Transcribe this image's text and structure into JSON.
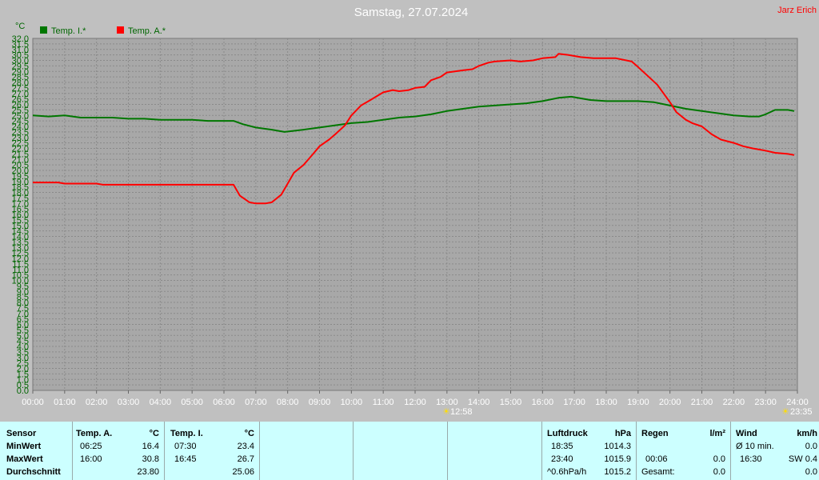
{
  "header": {
    "title": "Samstag, 27.07.2024",
    "author": "Jarz Erich"
  },
  "chart_data": {
    "type": "line",
    "unit_label": "°C",
    "ylim": [
      0,
      32
    ],
    "ystep": 0.5,
    "xlim_hours": [
      0,
      24
    ],
    "x_tick_labels": [
      "00:00",
      "01:00",
      "02:00",
      "03:00",
      "04:00",
      "05:00",
      "06:00",
      "07:00",
      "08:00",
      "09:00",
      "10:00",
      "11:00",
      "12:00",
      "13:00",
      "14:00",
      "15:00",
      "16:00",
      "17:00",
      "18:00",
      "19:00",
      "20:00",
      "21:00",
      "22:00",
      "23:00",
      "24:00"
    ],
    "grid": true,
    "legend_position": "top-left",
    "sunrise": "12:58",
    "sunset": "23:35",
    "series": [
      {
        "name": "Temp. I.*",
        "color": "#007700",
        "points": [
          [
            0,
            25.0
          ],
          [
            0.5,
            24.9
          ],
          [
            1.0,
            25.0
          ],
          [
            1.5,
            24.8
          ],
          [
            2.0,
            24.8
          ],
          [
            2.5,
            24.8
          ],
          [
            3.0,
            24.7
          ],
          [
            3.5,
            24.7
          ],
          [
            4.0,
            24.6
          ],
          [
            4.5,
            24.6
          ],
          [
            5.0,
            24.6
          ],
          [
            5.5,
            24.5
          ],
          [
            6.0,
            24.5
          ],
          [
            6.3,
            24.5
          ],
          [
            6.6,
            24.2
          ],
          [
            7.0,
            23.9
          ],
          [
            7.5,
            23.7
          ],
          [
            7.9,
            23.5
          ],
          [
            8.5,
            23.7
          ],
          [
            9.0,
            23.9
          ],
          [
            9.5,
            24.1
          ],
          [
            10.0,
            24.3
          ],
          [
            10.5,
            24.4
          ],
          [
            11.0,
            24.6
          ],
          [
            11.5,
            24.8
          ],
          [
            12.0,
            24.9
          ],
          [
            12.5,
            25.1
          ],
          [
            13.0,
            25.4
          ],
          [
            13.5,
            25.6
          ],
          [
            14.0,
            25.8
          ],
          [
            14.5,
            25.9
          ],
          [
            15.0,
            26.0
          ],
          [
            15.5,
            26.1
          ],
          [
            16.0,
            26.3
          ],
          [
            16.5,
            26.6
          ],
          [
            16.9,
            26.7
          ],
          [
            17.5,
            26.4
          ],
          [
            18.0,
            26.3
          ],
          [
            18.5,
            26.3
          ],
          [
            19.0,
            26.3
          ],
          [
            19.5,
            26.2
          ],
          [
            20.0,
            25.9
          ],
          [
            20.5,
            25.6
          ],
          [
            21.0,
            25.4
          ],
          [
            21.5,
            25.2
          ],
          [
            22.0,
            25.0
          ],
          [
            22.5,
            24.9
          ],
          [
            22.8,
            24.9
          ],
          [
            23.0,
            25.1
          ],
          [
            23.3,
            25.5
          ],
          [
            23.7,
            25.5
          ],
          [
            23.9,
            25.4
          ]
        ]
      },
      {
        "name": "Temp. A.*",
        "color": "#ff0000",
        "points": [
          [
            0,
            18.9
          ],
          [
            0.8,
            18.9
          ],
          [
            1.0,
            18.8
          ],
          [
            2.0,
            18.8
          ],
          [
            2.2,
            18.7
          ],
          [
            4.0,
            18.7
          ],
          [
            6.0,
            18.7
          ],
          [
            6.3,
            18.7
          ],
          [
            6.5,
            17.7
          ],
          [
            6.8,
            17.1
          ],
          [
            7.0,
            17.0
          ],
          [
            7.3,
            17.0
          ],
          [
            7.5,
            17.1
          ],
          [
            7.8,
            17.8
          ],
          [
            8.0,
            18.8
          ],
          [
            8.2,
            19.8
          ],
          [
            8.5,
            20.5
          ],
          [
            8.8,
            21.5
          ],
          [
            9.0,
            22.2
          ],
          [
            9.3,
            22.8
          ],
          [
            9.5,
            23.3
          ],
          [
            9.8,
            24.1
          ],
          [
            10.0,
            25.0
          ],
          [
            10.3,
            25.9
          ],
          [
            10.6,
            26.4
          ],
          [
            11.0,
            27.1
          ],
          [
            11.3,
            27.3
          ],
          [
            11.5,
            27.2
          ],
          [
            11.8,
            27.3
          ],
          [
            12.0,
            27.5
          ],
          [
            12.3,
            27.6
          ],
          [
            12.5,
            28.2
          ],
          [
            12.8,
            28.5
          ],
          [
            13.0,
            28.9
          ],
          [
            13.5,
            29.1
          ],
          [
            13.8,
            29.2
          ],
          [
            14.0,
            29.5
          ],
          [
            14.3,
            29.8
          ],
          [
            14.5,
            29.9
          ],
          [
            15.0,
            30.0
          ],
          [
            15.3,
            29.9
          ],
          [
            15.7,
            30.0
          ],
          [
            16.0,
            30.2
          ],
          [
            16.4,
            30.3
          ],
          [
            16.5,
            30.6
          ],
          [
            16.8,
            30.5
          ],
          [
            17.2,
            30.3
          ],
          [
            17.6,
            30.2
          ],
          [
            18.0,
            30.2
          ],
          [
            18.3,
            30.2
          ],
          [
            18.8,
            29.9
          ],
          [
            19.0,
            29.4
          ],
          [
            19.3,
            28.6
          ],
          [
            19.6,
            27.8
          ],
          [
            19.8,
            27.0
          ],
          [
            20.0,
            26.2
          ],
          [
            20.2,
            25.3
          ],
          [
            20.5,
            24.6
          ],
          [
            20.7,
            24.3
          ],
          [
            21.0,
            24.0
          ],
          [
            21.3,
            23.3
          ],
          [
            21.6,
            22.8
          ],
          [
            22.0,
            22.5
          ],
          [
            22.3,
            22.2
          ],
          [
            22.6,
            22.0
          ],
          [
            23.0,
            21.8
          ],
          [
            23.3,
            21.6
          ],
          [
            23.7,
            21.5
          ],
          [
            23.9,
            21.4
          ]
        ]
      }
    ]
  },
  "stats": {
    "sensor": {
      "header": "Sensor",
      "min": "MinWert",
      "max": "MaxWert",
      "avg": "Durchschnitt"
    },
    "temp_a": {
      "header": "Temp. A.",
      "unit": "°C",
      "min_time": "06:25",
      "min_val": "16.4",
      "max_time": "16:00",
      "max_val": "30.8",
      "avg": "23.80"
    },
    "temp_i": {
      "header": "Temp. I.",
      "unit": "°C",
      "min_time": "07:30",
      "min_val": "23.4",
      "max_time": "16:45",
      "max_val": "26.7",
      "avg": "25.06"
    },
    "pressure": {
      "header": "Luftdruck",
      "unit": "hPa",
      "min_time": "18:35",
      "min_val": "1014.3",
      "max_time": "23:40",
      "max_val": "1015.9",
      "trend": "^0.6hPa/h",
      "avg": "1015.2"
    },
    "rain": {
      "header": "Regen",
      "unit": "l/m²",
      "time": "00:06",
      "val": "0.0",
      "total_label": "Gesamt:",
      "total": "0.0"
    },
    "wind": {
      "header": "Wind",
      "unit": "km/h",
      "avg_label": "Ø 10 min.",
      "avg": "0.0",
      "time": "16:30",
      "max": "SW 0.4",
      "extra": "0.0"
    }
  }
}
